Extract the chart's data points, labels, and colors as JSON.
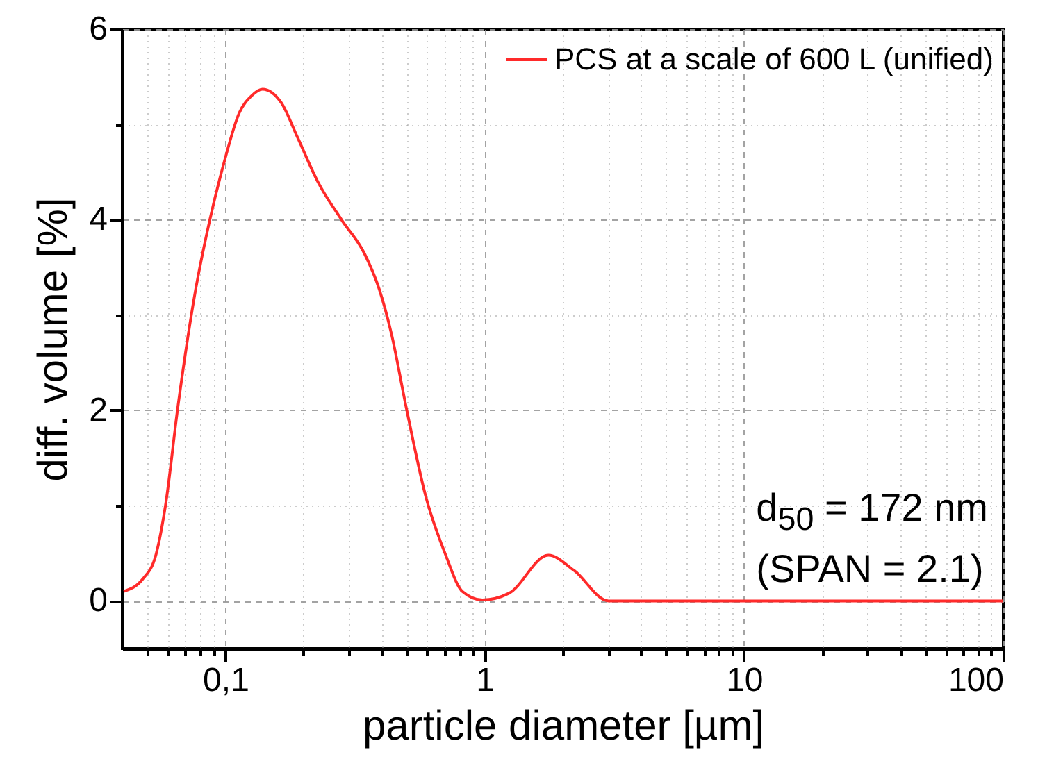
{
  "chart_data": {
    "type": "line",
    "xlabel": "particle diameter [µm]",
    "ylabel": "diff. volume [%]",
    "log": "x",
    "xlim": [
      0.04,
      100
    ],
    "ylim": [
      -0.5,
      6
    ],
    "xticks": [
      {
        "value": 0.05,
        "label": null
      },
      {
        "value": 0.06,
        "label": null
      },
      {
        "value": 0.07,
        "label": null
      },
      {
        "value": 0.08,
        "label": null
      },
      {
        "value": 0.09,
        "label": null
      },
      {
        "value": 0.1,
        "label": "0,1"
      },
      {
        "value": 0.2,
        "label": null
      },
      {
        "value": 0.3,
        "label": null
      },
      {
        "value": 0.4,
        "label": null
      },
      {
        "value": 0.5,
        "label": null
      },
      {
        "value": 0.6,
        "label": null
      },
      {
        "value": 0.7,
        "label": null
      },
      {
        "value": 0.8,
        "label": null
      },
      {
        "value": 0.9,
        "label": null
      },
      1,
      {
        "value": 2,
        "label": null
      },
      {
        "value": 3,
        "label": null
      },
      {
        "value": 4,
        "label": null
      },
      {
        "value": 5,
        "label": null
      },
      {
        "value": 6,
        "label": null
      },
      {
        "value": 7,
        "label": null
      },
      {
        "value": 8,
        "label": null
      },
      {
        "value": 9,
        "label": null
      },
      10,
      {
        "value": 20,
        "label": null
      },
      {
        "value": 30,
        "label": null
      },
      {
        "value": 40,
        "label": null
      },
      {
        "value": 50,
        "label": null
      },
      {
        "value": 60,
        "label": null
      },
      {
        "value": 70,
        "label": null
      },
      {
        "value": 80,
        "label": null
      },
      {
        "value": 90,
        "label": null
      },
      100
    ],
    "yticks": [
      0,
      {
        "value": 1,
        "label": null
      },
      2,
      {
        "value": 3,
        "label": null
      },
      4,
      {
        "value": 5,
        "label": null
      },
      6
    ],
    "grid": true,
    "legend": "top right",
    "x": [
      0.0405,
      0.048,
      0.054,
      0.0587,
      0.0655,
      0.0762,
      0.0869,
      0.099,
      0.113,
      0.126,
      0.139,
      0.164,
      0.19,
      0.227,
      0.282,
      0.343,
      0.392,
      0.437,
      0.498,
      0.592,
      0.705,
      0.82,
      0.98,
      1.24,
      1.76,
      2.21,
      3.0,
      10,
      100
    ],
    "series": [
      {
        "name": "PCS at a scale of 600 L (unified)",
        "color": "#ff2a2a",
        "values": [
          0.1,
          0.23,
          0.49,
          1.0,
          2.03,
          3.22,
          3.99,
          4.61,
          5.12,
          5.3,
          5.37,
          5.23,
          4.86,
          4.4,
          3.99,
          3.65,
          3.27,
          2.8,
          2.03,
          1.1,
          0.49,
          0.1,
          0.01,
          0.08,
          0.48,
          0.32,
          0,
          0,
          0
        ]
      }
    ],
    "annotations": [
      "d$_{50}$ = 172 nm",
      "(SPAN = 2.1)"
    ]
  }
}
